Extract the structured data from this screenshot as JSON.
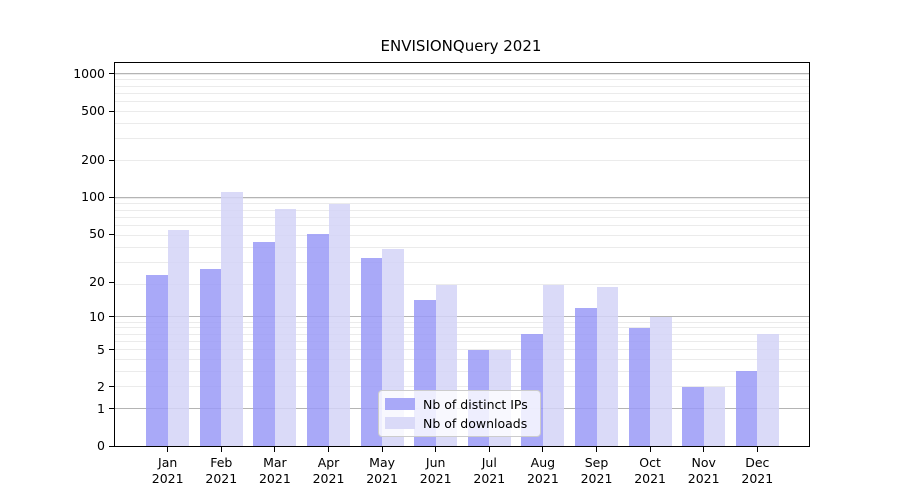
{
  "chart_data": {
    "type": "bar",
    "title": "ENVISIONQuery 2021",
    "categories": [
      "Jan 2021",
      "Feb 2021",
      "Mar 2021",
      "Apr 2021",
      "May 2021",
      "Jun 2021",
      "Jul 2021",
      "Aug 2021",
      "Sep 2021",
      "Oct 2021",
      "Nov 2021",
      "Dec 2021"
    ],
    "series": [
      {
        "name": "Nb of distinct IPs",
        "slug": "distinct-ips",
        "color": "#a9a9f8",
        "values": [
          23,
          26,
          43,
          50,
          32,
          14,
          5,
          7,
          12,
          8,
          2,
          3
        ]
      },
      {
        "name": "Nb of downloads",
        "slug": "downloads",
        "color": "#dadaf8",
        "values": [
          54,
          110,
          80,
          88,
          38,
          19,
          5,
          19,
          18,
          10,
          2,
          7
        ]
      }
    ],
    "xlabel": "",
    "ylabel": "",
    "yscale": "log1p",
    "y_ticks": [
      0,
      1,
      2,
      5,
      10,
      20,
      50,
      100,
      200,
      500,
      1000
    ],
    "major_grid_values": [
      1,
      10,
      100,
      1000
    ],
    "ylim": [
      0,
      1235
    ],
    "grid": true,
    "legend_position": "lower center",
    "colors": {
      "major_gridline": "#b4b4b4",
      "minor_gridline": "#ebebeb",
      "axis": "#000000",
      "text": "#000000",
      "legend_border": "#cccccc"
    }
  }
}
